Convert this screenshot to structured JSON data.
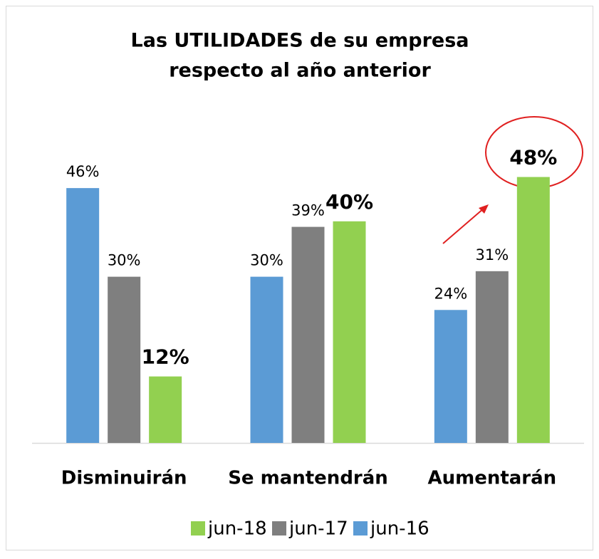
{
  "chart_data": {
    "type": "bar",
    "title": [
      "Las UTILIDADES de su empresa",
      "respecto al año anterior"
    ],
    "categories": [
      "Disminuirán",
      "Se mantendrán",
      "Aumentarán"
    ],
    "series": [
      {
        "name": "jun-16",
        "color": "#5b9bd5",
        "values": [
          46,
          30,
          24
        ],
        "value_labels": [
          "46%",
          "30%",
          "24%"
        ]
      },
      {
        "name": "jun-17",
        "color": "#7f7f7f",
        "values": [
          30,
          39,
          31
        ],
        "value_labels": [
          "30%",
          "39%",
          "31%"
        ]
      },
      {
        "name": "jun-18",
        "color": "#92d050",
        "values": [
          12,
          40,
          48
        ],
        "value_labels": [
          "12%",
          "40%",
          "48%"
        ]
      }
    ],
    "ylim": [
      0,
      50
    ],
    "legend": "bottom"
  }
}
